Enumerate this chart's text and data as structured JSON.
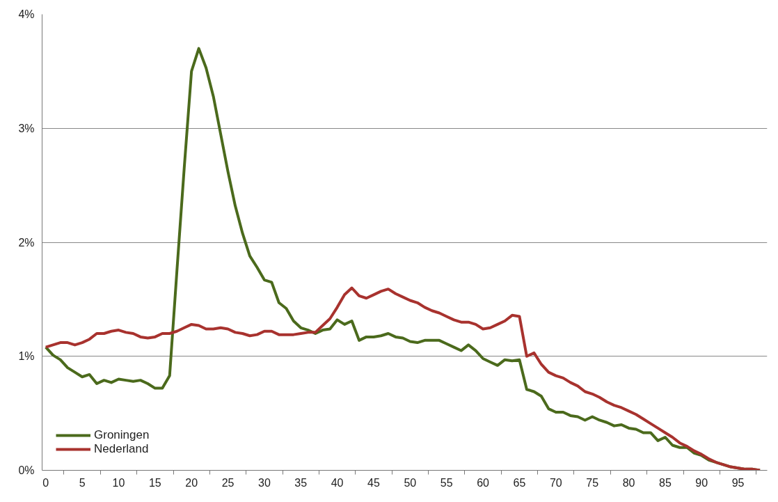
{
  "chart_data": {
    "type": "line",
    "x": [
      0,
      1,
      2,
      3,
      4,
      5,
      6,
      7,
      8,
      9,
      10,
      11,
      12,
      13,
      14,
      15,
      16,
      17,
      18,
      19,
      20,
      21,
      22,
      23,
      24,
      25,
      26,
      27,
      28,
      29,
      30,
      31,
      32,
      33,
      34,
      35,
      36,
      37,
      38,
      39,
      40,
      41,
      42,
      43,
      44,
      45,
      46,
      47,
      48,
      49,
      50,
      51,
      52,
      53,
      54,
      55,
      56,
      57,
      58,
      59,
      60,
      61,
      62,
      63,
      64,
      65,
      66,
      67,
      68,
      69,
      70,
      71,
      72,
      73,
      74,
      75,
      76,
      77,
      78,
      79,
      80,
      81,
      82,
      83,
      84,
      85,
      86,
      87,
      88,
      89,
      90,
      91,
      92,
      93,
      94,
      95,
      96,
      97,
      98
    ],
    "series": [
      {
        "name": "Groningen",
        "color": "#4b6a1c",
        "values": [
          1.08,
          1.01,
          0.97,
          0.9,
          0.86,
          0.82,
          0.84,
          0.76,
          0.79,
          0.77,
          0.8,
          0.79,
          0.78,
          0.79,
          0.76,
          0.72,
          0.72,
          0.83,
          1.75,
          2.65,
          3.5,
          3.7,
          3.53,
          3.28,
          2.95,
          2.62,
          2.32,
          2.08,
          1.88,
          1.78,
          1.67,
          1.65,
          1.47,
          1.42,
          1.31,
          1.25,
          1.23,
          1.2,
          1.23,
          1.24,
          1.32,
          1.28,
          1.31,
          1.14,
          1.17,
          1.17,
          1.18,
          1.2,
          1.17,
          1.16,
          1.13,
          1.12,
          1.14,
          1.14,
          1.14,
          1.11,
          1.08,
          1.05,
          1.1,
          1.05,
          0.98,
          0.95,
          0.92,
          0.97,
          0.96,
          0.97,
          0.71,
          0.69,
          0.65,
          0.54,
          0.51,
          0.51,
          0.48,
          0.47,
          0.44,
          0.47,
          0.44,
          0.42,
          0.39,
          0.4,
          0.37,
          0.36,
          0.33,
          0.33,
          0.26,
          0.29,
          0.22,
          0.2,
          0.2,
          0.15,
          0.13,
          0.09,
          0.07,
          0.05,
          0.03,
          0.02,
          0.01,
          0.01,
          0.0
        ]
      },
      {
        "name": "Nederland",
        "color": "#a8322e",
        "values": [
          1.08,
          1.1,
          1.12,
          1.12,
          1.1,
          1.12,
          1.15,
          1.2,
          1.2,
          1.22,
          1.23,
          1.21,
          1.2,
          1.17,
          1.16,
          1.17,
          1.2,
          1.2,
          1.22,
          1.25,
          1.28,
          1.27,
          1.24,
          1.24,
          1.25,
          1.24,
          1.21,
          1.2,
          1.18,
          1.19,
          1.22,
          1.22,
          1.19,
          1.19,
          1.19,
          1.2,
          1.21,
          1.21,
          1.27,
          1.33,
          1.43,
          1.54,
          1.6,
          1.53,
          1.51,
          1.54,
          1.57,
          1.59,
          1.55,
          1.52,
          1.49,
          1.47,
          1.43,
          1.4,
          1.38,
          1.35,
          1.32,
          1.3,
          1.3,
          1.28,
          1.24,
          1.25,
          1.28,
          1.31,
          1.36,
          1.35,
          1.0,
          1.03,
          0.93,
          0.86,
          0.83,
          0.81,
          0.77,
          0.74,
          0.69,
          0.67,
          0.64,
          0.6,
          0.57,
          0.55,
          0.52,
          0.49,
          0.45,
          0.41,
          0.37,
          0.33,
          0.29,
          0.24,
          0.21,
          0.17,
          0.14,
          0.1,
          0.07,
          0.05,
          0.03,
          0.02,
          0.01,
          0.01,
          0.0
        ]
      }
    ],
    "xlim": [
      -0.5,
      99
    ],
    "xticks": [
      0,
      5,
      10,
      15,
      20,
      25,
      30,
      35,
      40,
      45,
      50,
      55,
      60,
      65,
      70,
      75,
      80,
      85,
      90,
      95
    ],
    "ylim": [
      0,
      4
    ],
    "yticks": [
      {
        "value": 0,
        "label": "0%"
      },
      {
        "value": 1,
        "label": "1%"
      },
      {
        "value": 2,
        "label": "2%"
      },
      {
        "value": 3,
        "label": "3%"
      },
      {
        "value": 4,
        "label": "4%"
      }
    ],
    "grid": "y",
    "legend": "bottom left",
    "marker": "none",
    "line_style": "solid"
  }
}
